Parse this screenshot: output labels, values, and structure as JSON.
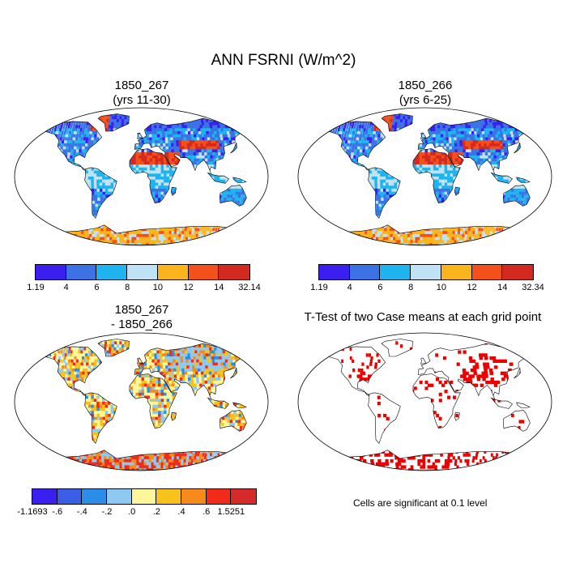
{
  "title": "ANN FSRNI (W/m^2)",
  "panels": [
    {
      "id": "p1",
      "line1": "1850_267",
      "line2": "(yrs 11-30)",
      "type": "field"
    },
    {
      "id": "p2",
      "line1": "1850_266",
      "line2": "(yrs 6-25)",
      "type": "field"
    },
    {
      "id": "p3",
      "line1": "1850_267",
      "line2": "- 1850_266",
      "type": "diff"
    },
    {
      "id": "p4",
      "line1": "T-Test of two Case means at each grid point",
      "line2": "",
      "type": "ttest"
    }
  ],
  "colorbars": {
    "cb1": {
      "colors": [
        "#3a1ff0",
        "#3b73e6",
        "#1fb4f0",
        "#bfe3f5",
        "#fbb41c",
        "#f5501c",
        "#d32a1f"
      ],
      "labels": [
        "1.19",
        "4",
        "6",
        "8",
        "10",
        "12",
        "14",
        "32.14"
      ]
    },
    "cb2": {
      "colors": [
        "#3a1ff0",
        "#3b73e6",
        "#1fb4f0",
        "#bfe3f5",
        "#fbb41c",
        "#f5501c",
        "#d32a1f"
      ],
      "labels": [
        "1.19",
        "4",
        "6",
        "8",
        "10",
        "12",
        "14",
        "32.34"
      ]
    },
    "cb3": {
      "colors": [
        "#3a1ff0",
        "#3b5ee6",
        "#2a8de8",
        "#8dc9f0",
        "#fdf79a",
        "#f8c21c",
        "#f68a1c",
        "#f22a1a",
        "#d42a2a"
      ],
      "labels": [
        "-1.1693",
        ".6",
        ".4",
        ".2",
        ".0",
        ".2",
        ".4",
        ".6",
        "1.5251"
      ],
      "label_prefix": [
        "",
        "-",
        "-",
        "-",
        "",
        "",
        "",
        "",
        ""
      ]
    }
  },
  "ttest_note": "Cells are significant at 0.1 level",
  "ttest_color": "#ee0000"
}
